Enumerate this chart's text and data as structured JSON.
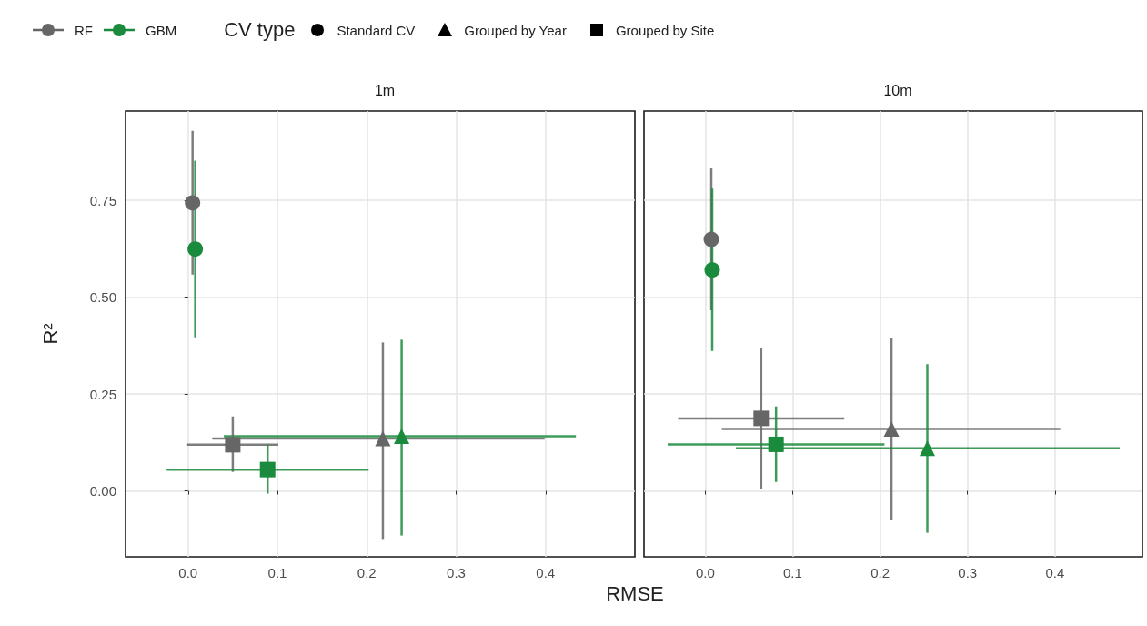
{
  "chart_data": [
    {
      "type": "scatter",
      "title": "1m",
      "xlabel": "RMSE",
      "ylabel": "R²",
      "legend": "top",
      "legend_title": "CV type",
      "grid": true,
      "annotations": [
        "Standard CV",
        "Grouped by Year",
        "Grouped by Site"
      ],
      "xlim": [
        -0.07,
        0.5
      ],
      "xticks": [
        {
          "value": 0,
          "label": "0.0"
        },
        0.1,
        0.2,
        0.3,
        0.4
      ],
      "ylim": [
        -0.17,
        0.98
      ],
      "yticks": [
        {
          "value": 0,
          "label": "0.00"
        },
        0.25,
        {
          "value": 0.5,
          "label": "0.50"
        },
        0.75
      ],
      "series": [
        {
          "name": "RF",
          "color": "#666666",
          "marker": "circle",
          "x": [
            0.005
          ],
          "values": [
            0.743
          ],
          "errors": [
            [
              0.558,
              0.929
            ]
          ]
        },
        {
          "name": "GBM",
          "color": "#1a8a3c",
          "marker": "circle",
          "x": [
            0.008
          ],
          "values": [
            0.624
          ],
          "errors": [
            [
              0.396,
              0.852
            ]
          ]
        },
        {
          "color": "#666666",
          "marker": "triangle",
          "x": [
            0.218
          ],
          "values": [
            0.135
          ],
          "errors": [
            [
              -0.124,
              0.383
            ]
          ],
          "xerrors": [
            [
              0.027,
              0.399
            ]
          ]
        },
        {
          "color": "#1a8a3c",
          "marker": "triangle",
          "x": [
            0.239
          ],
          "values": [
            0.141
          ],
          "errors": [
            [
              -0.115,
              0.39
            ]
          ],
          "xerrors": [
            [
              0.04,
              0.434
            ]
          ]
        },
        {
          "color": "#666666",
          "marker": "square",
          "x": [
            0.05
          ],
          "values": [
            0.119
          ],
          "errors": [
            [
              0.049,
              0.192
            ]
          ],
          "xerrors": [
            [
              -0.001,
              0.101
            ]
          ]
        },
        {
          "color": "#1a8a3c",
          "marker": "square",
          "x": [
            0.089
          ],
          "values": [
            0.055
          ],
          "errors": [
            [
              -0.007,
              0.12
            ]
          ],
          "xerrors": [
            [
              -0.024,
              0.202
            ]
          ]
        }
      ]
    },
    {
      "type": "scatter",
      "title": "10m",
      "grid": true,
      "tick_labels": "x",
      "xlim": [
        -0.07,
        0.5
      ],
      "xticks": [
        {
          "value": 0,
          "label": "0.0"
        },
        0.1,
        0.2,
        0.3,
        0.4
      ],
      "ylim": [
        -0.17,
        0.98
      ],
      "yticks": [
        0,
        0.25,
        0.5,
        0.75
      ],
      "series": [
        {
          "color": "#666666",
          "marker": "circle",
          "x": [
            0.007
          ],
          "values": [
            0.649
          ],
          "errors": [
            [
              0.466,
              0.832
            ]
          ]
        },
        {
          "color": "#1a8a3c",
          "marker": "circle",
          "x": [
            0.008
          ],
          "values": [
            0.57
          ],
          "errors": [
            [
              0.361,
              0.78
            ]
          ]
        },
        {
          "color": "#666666",
          "marker": "triangle",
          "x": [
            0.213
          ],
          "values": [
            0.16
          ],
          "errors": [
            [
              -0.075,
              0.394
            ]
          ],
          "xerrors": [
            [
              0.019,
              0.406
            ]
          ]
        },
        {
          "color": "#1a8a3c",
          "marker": "triangle",
          "x": [
            0.254
          ],
          "values": [
            0.11
          ],
          "errors": [
            [
              -0.108,
              0.327
            ]
          ],
          "xerrors": [
            [
              0.035,
              0.474
            ]
          ]
        },
        {
          "color": "#666666",
          "marker": "square",
          "x": [
            0.064
          ],
          "values": [
            0.187
          ],
          "errors": [
            [
              0.006,
              0.369
            ]
          ],
          "xerrors": [
            [
              -0.031,
              0.159
            ]
          ]
        },
        {
          "color": "#1a8a3c",
          "marker": "square",
          "x": [
            0.081
          ],
          "values": [
            0.12
          ],
          "errors": [
            [
              0.023,
              0.218
            ]
          ],
          "xerrors": [
            [
              -0.043,
              0.205
            ]
          ]
        }
      ]
    }
  ]
}
